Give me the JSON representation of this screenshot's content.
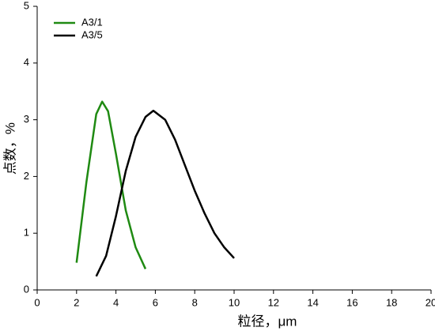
{
  "chart_data": {
    "type": "line",
    "xlabel": "粒径，μm",
    "ylabel": "点数，%",
    "xlim": [
      0,
      20
    ],
    "xticks": [
      0,
      2,
      4,
      6,
      8,
      10,
      12,
      14,
      16,
      18,
      20
    ],
    "ylim": [
      0,
      5
    ],
    "yticks": [
      0,
      1,
      2,
      3,
      4,
      5
    ],
    "legend": "upper-left",
    "series": [
      {
        "name": "A3/1",
        "color": "#1f8a12",
        "x": [
          2.0,
          2.5,
          3.0,
          3.3,
          3.6,
          4.0,
          4.5,
          5.0,
          5.5
        ],
        "values": [
          0.48,
          1.9,
          3.1,
          3.32,
          3.15,
          2.4,
          1.4,
          0.75,
          0.37
        ]
      },
      {
        "name": "A3/5",
        "color": "#000000",
        "x": [
          3.0,
          3.5,
          4.0,
          4.5,
          5.0,
          5.5,
          5.9,
          6.5,
          7.0,
          7.5,
          8.0,
          8.5,
          9.0,
          9.5,
          10.0
        ],
        "values": [
          0.24,
          0.6,
          1.3,
          2.1,
          2.7,
          3.05,
          3.16,
          3.0,
          2.65,
          2.2,
          1.75,
          1.35,
          1.0,
          0.75,
          0.56
        ]
      }
    ]
  }
}
